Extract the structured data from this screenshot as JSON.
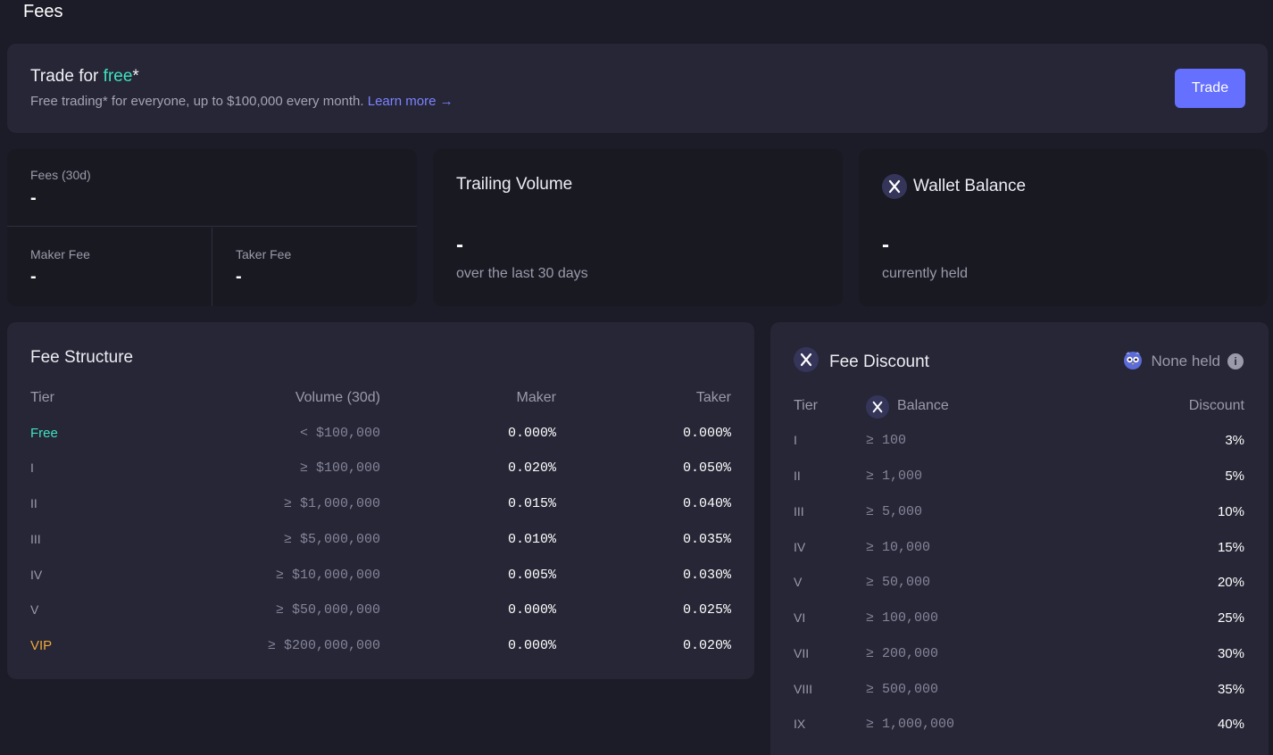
{
  "page": {
    "title": "Fees"
  },
  "promo": {
    "title_prefix": "Trade for ",
    "title_accent": "free",
    "title_suffix": "*",
    "subtitle": "Free trading* for everyone, up to $100,000 every month.",
    "learn_more": "Learn more →",
    "trade_button": "Trade"
  },
  "fees_card": {
    "fees_label": "Fees (30d)",
    "fees_value": "-",
    "maker_label": "Maker Fee",
    "maker_value": "-",
    "taker_label": "Taker Fee",
    "taker_value": "-"
  },
  "trailing_volume": {
    "title": "Trailing Volume",
    "value": "-",
    "sub": "over the last 30 days"
  },
  "wallet_balance": {
    "title": "Wallet Balance",
    "value": "-",
    "sub": "currently held"
  },
  "fee_structure": {
    "title": "Fee Structure",
    "headers": {
      "tier": "Tier",
      "volume": "Volume (30d)",
      "maker": "Maker",
      "taker": "Taker"
    },
    "rows": [
      {
        "tier": "Free",
        "volume": "< $100,000",
        "maker": "0.000%",
        "taker": "0.000%"
      },
      {
        "tier": "I",
        "volume": "≥ $100,000",
        "maker": "0.020%",
        "taker": "0.050%"
      },
      {
        "tier": "II",
        "volume": "≥ $1,000,000",
        "maker": "0.015%",
        "taker": "0.040%"
      },
      {
        "tier": "III",
        "volume": "≥ $5,000,000",
        "maker": "0.010%",
        "taker": "0.035%"
      },
      {
        "tier": "IV",
        "volume": "≥ $10,000,000",
        "maker": "0.005%",
        "taker": "0.030%"
      },
      {
        "tier": "V",
        "volume": "≥ $50,000,000",
        "maker": "0.000%",
        "taker": "0.025%"
      },
      {
        "tier": "VIP",
        "volume": "≥ $200,000,000",
        "maker": "0.000%",
        "taker": "0.020%"
      }
    ]
  },
  "fee_discount": {
    "title": "Fee Discount",
    "none_held": "None held",
    "headers": {
      "tier": "Tier",
      "balance": "Balance",
      "discount": "Discount"
    },
    "rows": [
      {
        "tier": "I",
        "balance": "≥ 100",
        "discount": "3%"
      },
      {
        "tier": "II",
        "balance": "≥ 1,000",
        "discount": "5%"
      },
      {
        "tier": "III",
        "balance": "≥ 5,000",
        "discount": "10%"
      },
      {
        "tier": "IV",
        "balance": "≥ 10,000",
        "discount": "15%"
      },
      {
        "tier": "V",
        "balance": "≥ 50,000",
        "discount": "20%"
      },
      {
        "tier": "VI",
        "balance": "≥ 100,000",
        "discount": "25%"
      },
      {
        "tier": "VII",
        "balance": "≥ 200,000",
        "discount": "30%"
      },
      {
        "tier": "VIII",
        "balance": "≥ 500,000",
        "discount": "35%"
      },
      {
        "tier": "IX",
        "balance": "≥ 1,000,000",
        "discount": "40%"
      }
    ]
  },
  "colors": {
    "accent_free": "#3fe0c0",
    "accent_vip": "#f0a93a",
    "link": "#7b83ff",
    "button": "#6570ff"
  },
  "icons": {
    "token": "x-token-icon",
    "owl": "owl-badge-icon",
    "info": "info-icon"
  }
}
